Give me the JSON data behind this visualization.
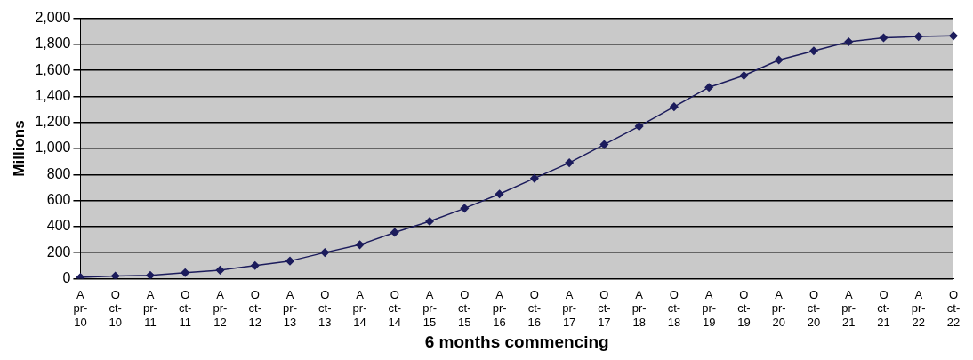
{
  "chart_data": {
    "type": "line",
    "xlabel": "6 months commencing",
    "ylabel": "Millions",
    "categories": [
      "Apr-10",
      "Oct-10",
      "Apr-11",
      "Oct-11",
      "Apr-12",
      "Oct-12",
      "Apr-13",
      "Oct-13",
      "Apr-14",
      "Oct-14",
      "Apr-15",
      "Oct-15",
      "Apr-16",
      "Oct-16",
      "Apr-17",
      "Oct-17",
      "Apr-18",
      "Oct-18",
      "Apr-19",
      "Oct-19",
      "Apr-20",
      "Oct-20",
      "Apr-21",
      "Oct-21",
      "Apr-22",
      "Oct-22"
    ],
    "series": [
      {
        "color": "#1c1c5c",
        "values": [
          10,
          20,
          25,
          45,
          65,
          100,
          135,
          200,
          260,
          355,
          440,
          540,
          650,
          770,
          890,
          1030,
          1170,
          1320,
          1470,
          1560,
          1680,
          1750,
          1820,
          1850,
          1860,
          1865
        ]
      }
    ],
    "ylim": [
      0,
      2000
    ],
    "yticks": [
      {
        "value": 0,
        "label": "0"
      },
      {
        "value": 200,
        "label": "200"
      },
      {
        "value": 400,
        "label": "400"
      },
      {
        "value": 600,
        "label": "600"
      },
      {
        "value": 800,
        "label": "800"
      },
      {
        "value": 1000,
        "label": "1,000"
      },
      {
        "value": 1200,
        "label": "1,200"
      },
      {
        "value": 1400,
        "label": "1,400"
      },
      {
        "value": 1600,
        "label": "1,600"
      },
      {
        "value": 1800,
        "label": "1,800"
      },
      {
        "value": 2000,
        "label": "2,000"
      }
    ],
    "grid": "y",
    "legend": false,
    "marker": "diamond",
    "line_style": "solid"
  }
}
